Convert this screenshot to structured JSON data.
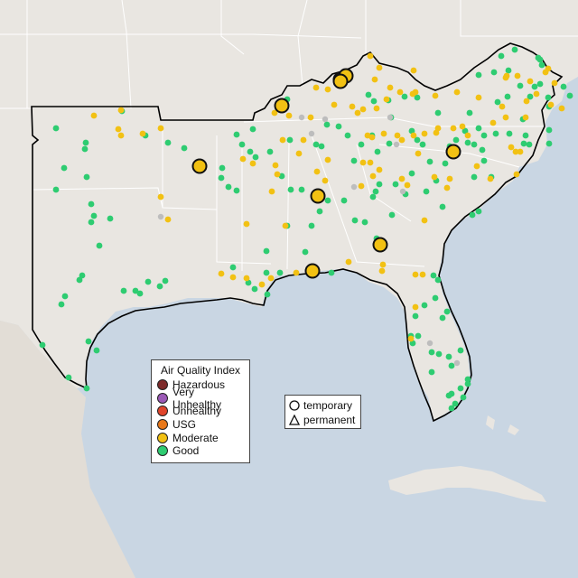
{
  "legend_aqi": {
    "title": "Air Quality Index",
    "items": [
      {
        "label": "Hazardous",
        "color": "#7e2b2b"
      },
      {
        "label": "Very Unhealthy",
        "color": "#9b59b6"
      },
      {
        "label": "Unhealthy",
        "color": "#e0452c"
      },
      {
        "label": "USG",
        "color": "#e8781a"
      },
      {
        "label": "Moderate",
        "color": "#f2c113"
      },
      {
        "label": "Good",
        "color": "#2ecc71"
      }
    ]
  },
  "legend_type": {
    "items": [
      {
        "label": "temporary",
        "symbol": "circle-outline-icon"
      },
      {
        "label": "permanent",
        "symbol": "triangle-outline-icon"
      }
    ]
  },
  "colors": {
    "land": "#e9e6e1",
    "water": "#c9d6e3",
    "border": "#000000",
    "state_lines": "#ffffff",
    "good": "#2ecc71",
    "moderate": "#f2c113",
    "nodata": "#bdbdbd"
  }
}
